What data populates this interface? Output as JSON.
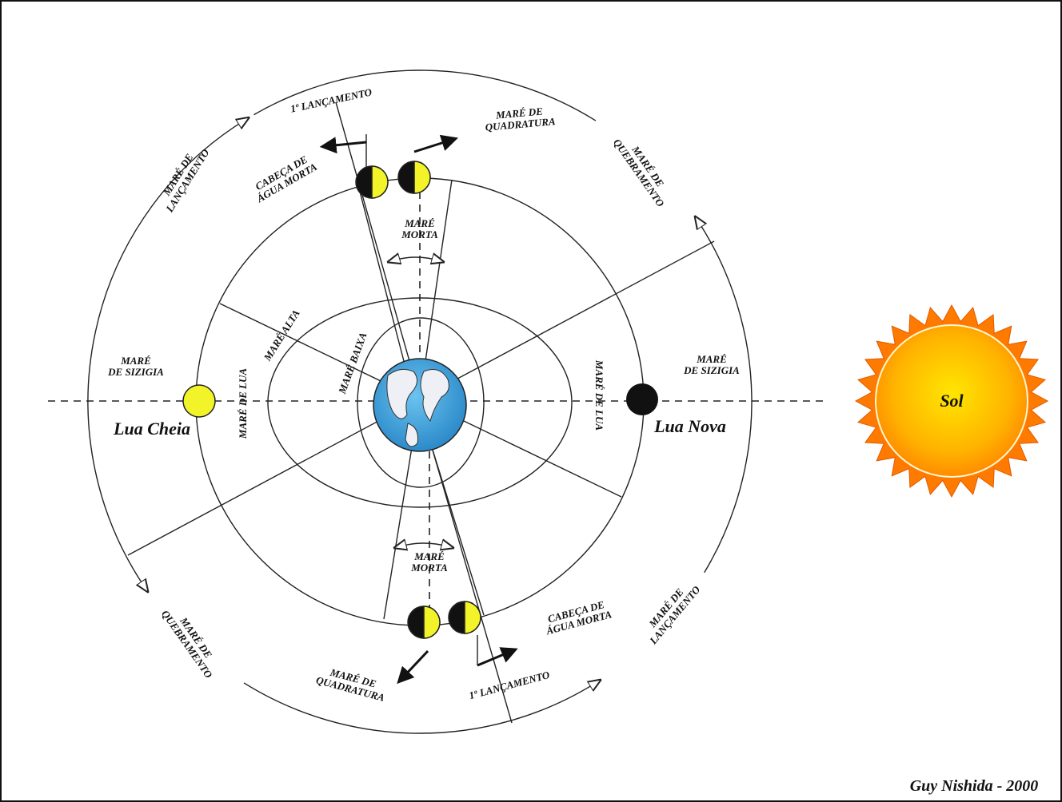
{
  "labels": {
    "lancamento_top": "1º LANÇAMENTO",
    "quadratura_top": [
      "MARÉ DE",
      "QUADRATURA"
    ],
    "cabeca_top": [
      "CABEÇA DE",
      "ÁGUA MORTA"
    ],
    "lancamento_left": [
      "MARÉ DE",
      "LANÇAMENTO"
    ],
    "quebramento_right": [
      "MARÉ DE",
      "QUEBRAMENTO"
    ],
    "morta_top": [
      "MARÉ",
      "MORTA"
    ],
    "alta": "MARÉ ALTA",
    "baixa": "MARÉ BAIXA",
    "sizigia_left": [
      "MARÉ",
      "DE SIZIGIA"
    ],
    "lua_cheia": "Lua Cheia",
    "lua_left": "MARÉ DE LUA",
    "lua_right": "MARÉ DE LUA",
    "sizigia_right": [
      "MARÉ",
      "DE SIZIGIA"
    ],
    "lua_nova": "Lua Nova",
    "sol": "Sol",
    "morta_bottom": [
      "MARÉ",
      "MORTA"
    ],
    "quebramento_bottom": [
      "MARÉ DE",
      "QUEBRAMENTO"
    ],
    "quadratura_bottom": [
      "MARÉ DE",
      "QUADRATURA"
    ],
    "cabeca_bottom": [
      "CABEÇA DE",
      "ÁGUA MORTA"
    ],
    "lancamento_bottom": "1º LANÇAMENTO",
    "lancamento_right": [
      "MARÉ DE",
      "LANÇAMENTO"
    ],
    "author": "Guy Nishida - 2000"
  }
}
